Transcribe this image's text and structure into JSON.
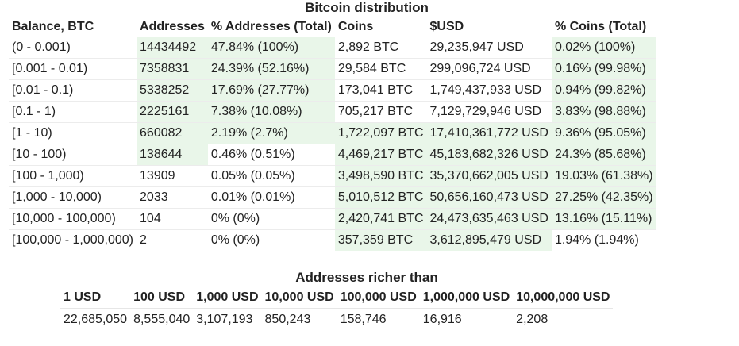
{
  "distribution": {
    "title": "Bitcoin distribution",
    "headers": [
      "Balance, BTC",
      "Addresses",
      "% Addresses (Total)",
      "Coins",
      "$USD",
      "% Coins (Total)"
    ],
    "rows": [
      [
        "(0 - 0.001)",
        "14434492",
        "47.84% (100%)",
        "2,892 BTC",
        "29,235,947 USD",
        "0.02% (100%)"
      ],
      [
        "[0.001 - 0.01)",
        "7358831",
        "24.39% (52.16%)",
        "29,584 BTC",
        "299,096,724 USD",
        "0.16% (99.98%)"
      ],
      [
        "[0.01 - 0.1)",
        "5338252",
        "17.69% (27.77%)",
        "173,041 BTC",
        "1,749,437,933 USD",
        "0.94% (99.82%)"
      ],
      [
        "[0.1 - 1)",
        "2225161",
        "7.38% (10.08%)",
        "705,217 BTC",
        "7,129,729,946 USD",
        "3.83% (98.88%)"
      ],
      [
        "[1 - 10)",
        "660082",
        "2.19% (2.7%)",
        "1,722,097 BTC",
        "17,410,361,772 USD",
        "9.36% (95.05%)"
      ],
      [
        "[10 - 100)",
        "138644",
        "0.46% (0.51%)",
        "4,469,217 BTC",
        "45,183,682,326 USD",
        "24.3% (85.68%)"
      ],
      [
        "[100 - 1,000)",
        "13909",
        "0.05% (0.05%)",
        "3,498,590 BTC",
        "35,370,662,005 USD",
        "19.03% (61.38%)"
      ],
      [
        "[1,000 - 10,000)",
        "2033",
        "0.01% (0.01%)",
        "5,010,512 BTC",
        "50,656,160,473 USD",
        "27.25% (42.35%)"
      ],
      [
        "[10,000 - 100,000)",
        "104",
        "0% (0%)",
        "2,420,741 BTC",
        "24,473,635,463 USD",
        "13.16% (15.11%)"
      ],
      [
        "[100,000 - 1,000,000)",
        "2",
        "0% (0%)",
        "357,359 BTC",
        "3,612,895,479 USD",
        "1.94% (1.94%)"
      ]
    ],
    "highlight": [
      [
        false,
        true,
        true,
        false,
        false,
        true
      ],
      [
        false,
        true,
        true,
        false,
        false,
        true
      ],
      [
        false,
        true,
        true,
        false,
        false,
        true
      ],
      [
        false,
        true,
        true,
        false,
        false,
        true
      ],
      [
        false,
        true,
        true,
        true,
        true,
        true
      ],
      [
        false,
        true,
        false,
        true,
        true,
        true
      ],
      [
        false,
        false,
        false,
        true,
        true,
        true
      ],
      [
        false,
        false,
        false,
        true,
        true,
        true
      ],
      [
        false,
        false,
        false,
        true,
        true,
        true
      ],
      [
        false,
        false,
        false,
        true,
        true,
        false
      ]
    ]
  },
  "richer": {
    "title": "Addresses richer than",
    "headers": [
      "1 USD",
      "100 USD",
      "1,000 USD",
      "10,000 USD",
      "100,000 USD",
      "1,000,000 USD",
      "10,000,000 USD"
    ],
    "values": [
      "22,685,050",
      "8,555,040",
      "3,107,193",
      "850,243",
      "158,746",
      "16,916",
      "2,208"
    ]
  },
  "colors": {
    "highlight": "#e9f6e9",
    "border": "#ececec",
    "text": "#222222"
  }
}
